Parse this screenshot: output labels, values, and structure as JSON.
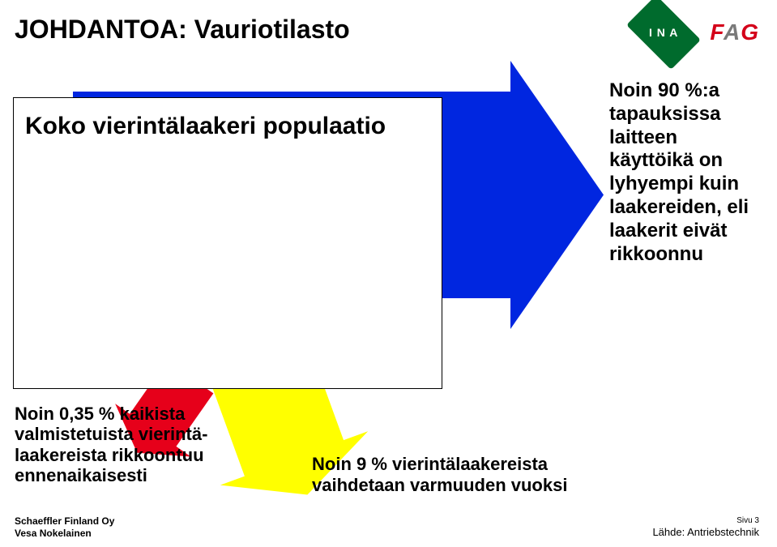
{
  "title": "JOHDANTOA: Vauriotilasto",
  "logos": {
    "ina_text": "I N A",
    "fag_f": "F",
    "fag_a": "A",
    "fag_g": "G"
  },
  "white_box_text": "Koko vierintälaakeri populaatio",
  "left_caption": "Noin 0,35 % kaikista valmistetuista vierintä-laakereista rikkoontuu ennenaikaisesti",
  "mid_caption": "Noin 9 % vierintälaakereista vaihdetaan varmuuden vuoksi",
  "right_caption": "Noin 90 %:a tapauksissa laitteen käyttöikä on lyhyempi kuin laakereiden, eli laakerit eivät rikkoonnu",
  "footer": {
    "company": "Schaeffler Finland Oy",
    "author": "Vesa Nokelainen",
    "page_label": "Sivu 3",
    "source": "Lähde: Antriebstechnik"
  },
  "colors": {
    "blue": "#0026e0",
    "red": "#e6001a",
    "yellow": "#ffff00",
    "green_logo": "#006b2d",
    "fag_red": "#d4001a",
    "fag_grey": "#7a7a7a",
    "white": "#ffffff",
    "black": "#000000"
  },
  "arrows": {
    "blue": {
      "body_width": 540,
      "body_height": 255,
      "head_depth": 115,
      "head_overhang": 38
    },
    "yellow": {
      "body_width": 130,
      "body_height": 200,
      "head_depth": 48,
      "head_overhang": 32,
      "rotation_deg": 20
    },
    "red": {
      "body_width": 70,
      "body_height": 80,
      "head_depth": 34,
      "head_overhang": 22,
      "rotation_deg": 35
    }
  }
}
